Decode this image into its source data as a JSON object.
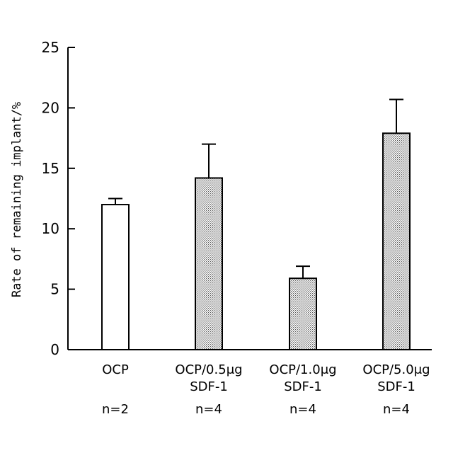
{
  "chart_data": {
    "type": "bar",
    "title": "",
    "xlabel": "",
    "ylabel": "Rate of remaining implant/%",
    "ylim": [
      0,
      25
    ],
    "yticks": [
      0,
      5,
      10,
      15,
      20,
      25
    ],
    "categories": [
      {
        "line1": "OCP",
        "line2": "",
        "n": "n=2"
      },
      {
        "line1": "OCP/0.5μg",
        "line2": "SDF-1",
        "n": "n=4"
      },
      {
        "line1": "OCP/1.0μg",
        "line2": "SDF-1",
        "n": "n=4"
      },
      {
        "line1": "OCP/5.0μg",
        "line2": "SDF-1",
        "n": "n=4"
      }
    ],
    "values": [
      12.0,
      14.2,
      5.9,
      17.9
    ],
    "errors": [
      0.5,
      2.8,
      1.0,
      2.8
    ],
    "fills": [
      "white",
      "dotted",
      "dotted",
      "dotted"
    ],
    "grid": false,
    "legend": "none"
  }
}
